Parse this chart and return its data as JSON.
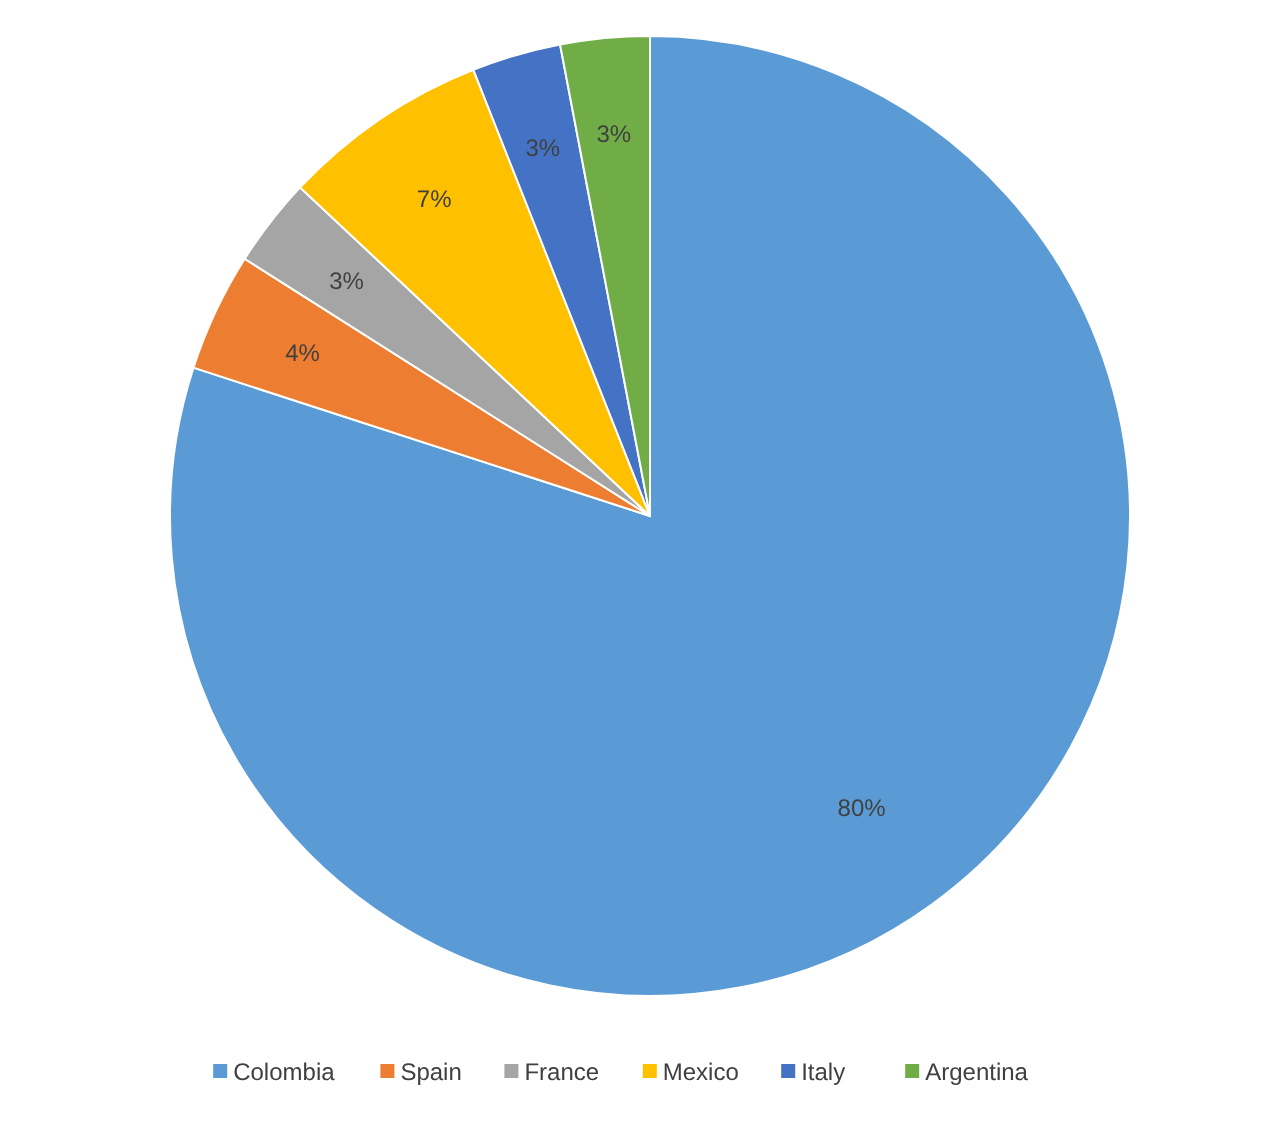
{
  "chart_data": {
    "type": "pie",
    "categories": [
      "Colombia",
      "Spain",
      "France",
      "Mexico",
      "Italy",
      "Argentina"
    ],
    "values": [
      80,
      4,
      3,
      7,
      3,
      3
    ],
    "colors": [
      "#5b9bd5",
      "#ed7d31",
      "#a5a5a5",
      "#ffc000",
      "#4472c4",
      "#70ad47"
    ],
    "value_labels": [
      "80%",
      "4%",
      "3%",
      "7%",
      "3%",
      "3%"
    ],
    "legend": "bottom"
  }
}
